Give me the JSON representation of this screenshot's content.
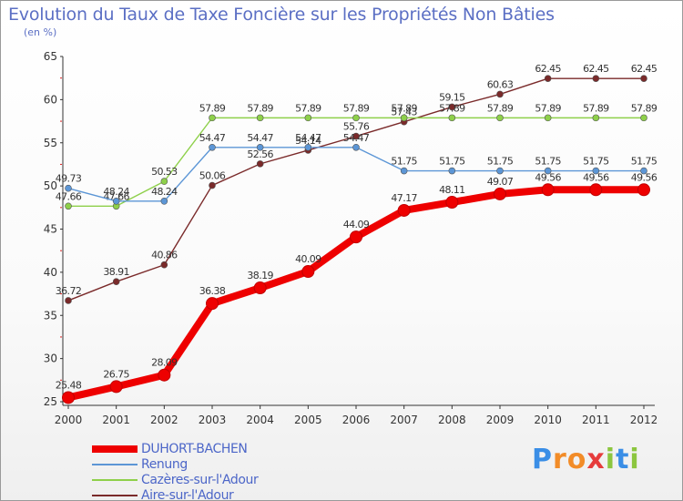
{
  "title": "Evolution du Taux de Taxe Foncière sur les Propriétés Non Bâties",
  "unit_label": "(en %)",
  "brand": {
    "letters": [
      "P",
      "r",
      "o",
      "x",
      "i",
      "t",
      "i"
    ],
    "colors": [
      "#3a8ee6",
      "#f28c28",
      "#f28c28",
      "#e63c3c",
      "#8cc63f",
      "#3a8ee6",
      "#8cc63f"
    ]
  },
  "chart_data": {
    "type": "line",
    "title": "Evolution du Taux de Taxe Foncière sur les Propriétés Non Bâties",
    "ylabel": "(en %)",
    "xlabel": "",
    "ylim": [
      25,
      65
    ],
    "yticks": [
      25,
      30,
      35,
      40,
      45,
      50,
      55,
      60,
      65
    ],
    "grid": false,
    "legend_position": "bottom-left",
    "categories": [
      "2000",
      "2001",
      "2002",
      "2003",
      "2004",
      "2005",
      "2006",
      "2007",
      "2008",
      "2009",
      "2010",
      "2011",
      "2012"
    ],
    "series": [
      {
        "name": "Aire-sur-l'Adour",
        "color": "#7a2a2a",
        "values": [
          36.72,
          38.91,
          40.86,
          50.06,
          52.56,
          54.14,
          55.76,
          57.43,
          59.15,
          60.63,
          62.45,
          62.45,
          62.45
        ],
        "labels": [
          "36.72",
          "38.91",
          "40.86",
          "50.06",
          "52.56",
          "54.14",
          "55.76",
          "57.43",
          "59.15",
          "60.63",
          "62.45",
          "62.45",
          "62.45"
        ]
      },
      {
        "name": "Cazères-sur-l'Adour",
        "color": "#8ed04a",
        "values": [
          47.66,
          47.66,
          50.53,
          57.89,
          57.89,
          57.89,
          57.89,
          57.89,
          57.89,
          57.89,
          57.89,
          57.89,
          57.89
        ],
        "labels": [
          "47.66",
          "47.66",
          "50.53",
          "57.89",
          "57.89",
          "57.89",
          "57.89",
          "57.89",
          "57.89",
          "57.89",
          "57.89",
          "57.89",
          "57.89"
        ]
      },
      {
        "name": "Renung",
        "color": "#5c96d6",
        "values": [
          49.73,
          48.24,
          48.24,
          54.47,
          54.47,
          54.47,
          54.47,
          51.75,
          51.75,
          51.75,
          51.75,
          51.75,
          51.75
        ],
        "labels": [
          "49.73",
          "48.24",
          "48.24",
          "54.47",
          "54.47",
          "54.47",
          "54.47",
          "51.75",
          "51.75",
          "51.75",
          "51.75",
          "51.75",
          "51.75"
        ]
      },
      {
        "name": "DUHORT-BACHEN",
        "color": "#ee0000",
        "values": [
          25.48,
          26.75,
          28.09,
          36.38,
          38.19,
          40.09,
          44.09,
          47.17,
          48.11,
          49.07,
          49.56,
          49.56,
          49.56
        ],
        "labels": [
          "25.48",
          "26.75",
          "28.09",
          "36.38",
          "38.19",
          "40.09",
          "44.09",
          "47.17",
          "48.11",
          "49.07",
          "49.56",
          "49.56",
          "49.56"
        ]
      }
    ]
  },
  "legend": [
    {
      "label": "DUHORT-BACHEN",
      "color": "#ee0000",
      "thick": true
    },
    {
      "label": "Renung",
      "color": "#5c96d6",
      "thick": false
    },
    {
      "label": "Cazères-sur-l'Adour",
      "color": "#8ed04a",
      "thick": false
    },
    {
      "label": "Aire-sur-l'Adour",
      "color": "#7a2a2a",
      "thick": false
    }
  ]
}
